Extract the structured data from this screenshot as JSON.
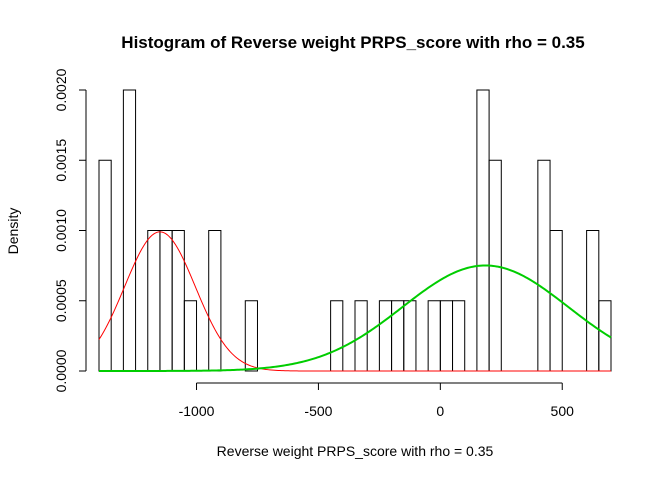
{
  "chart_data": {
    "type": "histogram",
    "title": "Histogram of Reverse weight PRPS_score with rho = 0.35",
    "xlabel": "Reverse weight PRPS_score with rho = 0.35",
    "ylabel": "Density",
    "xlim": [
      -1400,
      700
    ],
    "ylim": [
      0,
      0.002
    ],
    "x_ticks": [
      -1000,
      -500,
      0,
      500
    ],
    "x_tick_labels": [
      "-1000",
      "-500",
      "0",
      "500"
    ],
    "y_ticks": [
      0,
      0.0005,
      0.001,
      0.0015,
      0.002
    ],
    "y_tick_labels": [
      "0.0000",
      "0.0005",
      "0.0010",
      "0.0015",
      "0.0020"
    ],
    "bin_width": 50,
    "bins": [
      {
        "start": -1400,
        "density": 0.0015
      },
      {
        "start": -1350,
        "density": 0
      },
      {
        "start": -1300,
        "density": 0.002
      },
      {
        "start": -1250,
        "density": 0
      },
      {
        "start": -1200,
        "density": 0.001
      },
      {
        "start": -1150,
        "density": 0.001
      },
      {
        "start": -1100,
        "density": 0.001
      },
      {
        "start": -1050,
        "density": 0.0005
      },
      {
        "start": -1000,
        "density": 0
      },
      {
        "start": -950,
        "density": 0.001
      },
      {
        "start": -900,
        "density": 0
      },
      {
        "start": -850,
        "density": 0
      },
      {
        "start": -800,
        "density": 0.0005
      },
      {
        "start": -750,
        "density": 0
      },
      {
        "start": -700,
        "density": 0
      },
      {
        "start": -650,
        "density": 0
      },
      {
        "start": -600,
        "density": 0
      },
      {
        "start": -550,
        "density": 0
      },
      {
        "start": -500,
        "density": 0
      },
      {
        "start": -450,
        "density": 0.0005
      },
      {
        "start": -400,
        "density": 0
      },
      {
        "start": -350,
        "density": 0.0005
      },
      {
        "start": -300,
        "density": 0
      },
      {
        "start": -250,
        "density": 0.0005
      },
      {
        "start": -200,
        "density": 0.0005
      },
      {
        "start": -150,
        "density": 0.0005
      },
      {
        "start": -100,
        "density": 0
      },
      {
        "start": -50,
        "density": 0.0005
      },
      {
        "start": 0,
        "density": 0.0005
      },
      {
        "start": 50,
        "density": 0.0005
      },
      {
        "start": 100,
        "density": 0
      },
      {
        "start": 150,
        "density": 0.002
      },
      {
        "start": 200,
        "density": 0.0015
      },
      {
        "start": 250,
        "density": 0
      },
      {
        "start": 300,
        "density": 0
      },
      {
        "start": 350,
        "density": 0
      },
      {
        "start": 400,
        "density": 0.0015
      },
      {
        "start": 450,
        "density": 0.001
      },
      {
        "start": 500,
        "density": 0
      },
      {
        "start": 550,
        "density": 0
      },
      {
        "start": 600,
        "density": 0.001
      },
      {
        "start": 650,
        "density": 0.0005
      }
    ],
    "curves": [
      {
        "color": "#ff0000",
        "line_width": 1,
        "x_range": [
          -1400,
          700
        ],
        "weight": 0.36,
        "mean": -1150,
        "sd": 145
      },
      {
        "color": "#00cd00",
        "line_width": 2,
        "x_range": [
          -1400,
          700
        ],
        "weight": 0.64,
        "mean": 185,
        "sd": 340
      }
    ],
    "grid": false
  }
}
